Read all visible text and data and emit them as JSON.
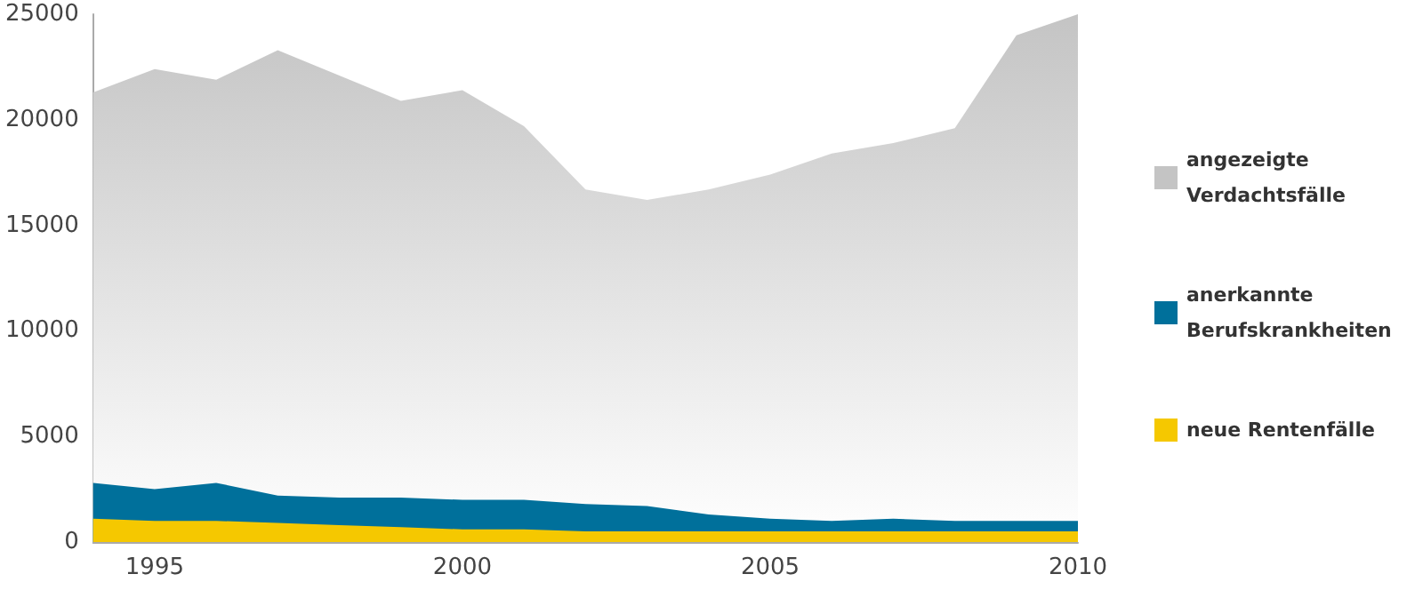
{
  "chart_data": {
    "type": "area",
    "x": [
      1994,
      1995,
      1996,
      1997,
      1998,
      1999,
      2000,
      2001,
      2002,
      2003,
      2004,
      2005,
      2006,
      2007,
      2008,
      2009,
      2010
    ],
    "series": [
      {
        "name": "angezeigte Verdachtsfälle",
        "color": "#c4c4c4",
        "values": [
          21300,
          22400,
          21900,
          23300,
          22100,
          20900,
          21400,
          19700,
          16700,
          16200,
          16700,
          17400,
          18400,
          18900,
          19600,
          24000,
          25000
        ]
      },
      {
        "name": "anerkannte Berufskrankheiten",
        "color": "#00709b",
        "values": [
          2800,
          2500,
          2800,
          2200,
          2100,
          2100,
          2000,
          2000,
          1800,
          1700,
          1300,
          1100,
          1000,
          1100,
          1000,
          1000,
          1000
        ]
      },
      {
        "name": "neue Rentenfälle",
        "color": "#f5c800",
        "values": [
          1100,
          1000,
          1000,
          900,
          800,
          700,
          600,
          600,
          500,
          500,
          500,
          500,
          500,
          500,
          500,
          500,
          500
        ]
      }
    ],
    "xlim": [
      1994,
      2010
    ],
    "xticks": [
      1995,
      2000,
      2005,
      2010
    ],
    "ylim": [
      0,
      25000
    ],
    "yticks": [
      0,
      5000,
      10000,
      15000,
      20000,
      25000
    ],
    "grid": false,
    "legend": "right"
  }
}
